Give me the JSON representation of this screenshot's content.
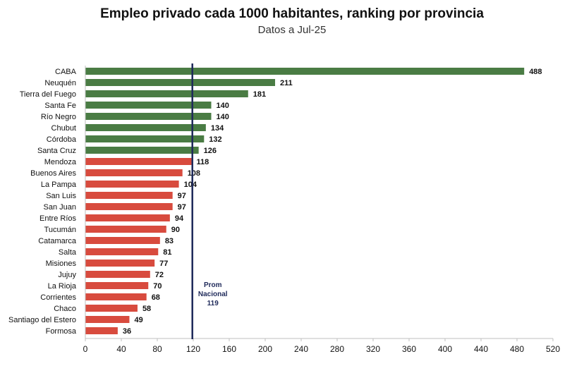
{
  "chart_data": {
    "type": "bar",
    "orientation": "horizontal",
    "title": "Empleo privado cada 1000 habitantes, ranking por provincia",
    "subtitle": "Datos a Jul-25",
    "categories": [
      "CABA",
      "Neuquén",
      "Tierra del Fuego",
      "Santa Fe",
      "Río Negro",
      "Chubut",
      "Córdoba",
      "Santa Cruz",
      "Mendoza",
      "Buenos Aires",
      "La Pampa",
      "San Luis",
      "San Juan",
      "Entre Ríos",
      "Tucumán",
      "Catamarca",
      "Salta",
      "Misiones",
      "Jujuy",
      "La Rioja",
      "Corrientes",
      "Chaco",
      "Santiago del Estero",
      "Formosa"
    ],
    "values": [
      488,
      211,
      181,
      140,
      140,
      134,
      132,
      126,
      118,
      108,
      104,
      97,
      97,
      94,
      90,
      83,
      81,
      77,
      72,
      70,
      68,
      58,
      49,
      36
    ],
    "xlim": [
      0,
      520
    ],
    "xticks": [
      0,
      40,
      80,
      120,
      160,
      200,
      240,
      280,
      320,
      360,
      400,
      440,
      480,
      520
    ],
    "reference_line": {
      "value": 119,
      "label_lines": [
        "Prom",
        "Nacional",
        "119"
      ]
    },
    "colors": {
      "above": "#4a7c44",
      "below": "#d84b3e",
      "reference": "#1f2a5a",
      "axis": "#bfbfbf"
    }
  }
}
